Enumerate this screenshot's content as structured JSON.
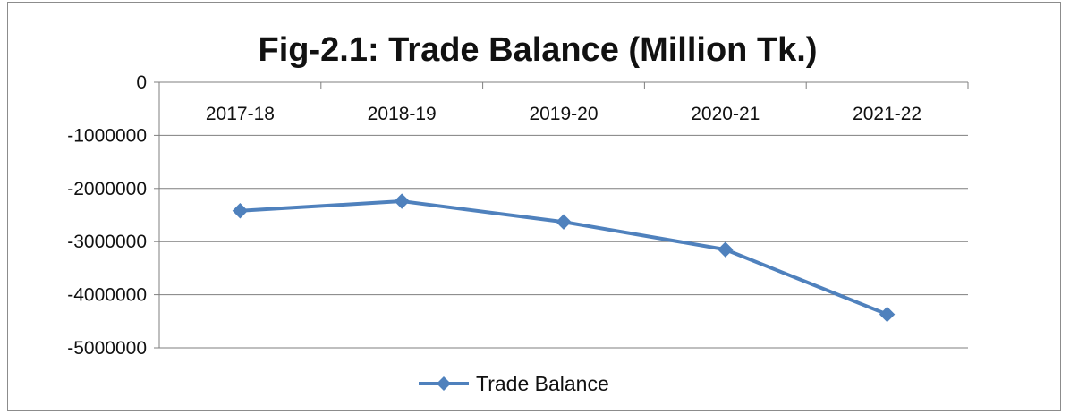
{
  "chart_data": {
    "type": "line",
    "title": "Fig-2.1: Trade Balance (Million Tk.)",
    "xlabel": "",
    "ylabel": "",
    "categories": [
      "2017-18",
      "2018-19",
      "2019-20",
      "2020-21",
      "2021-22"
    ],
    "series": [
      {
        "name": "Trade Balance",
        "color": "#4f81bd",
        "marker": "diamond",
        "values": [
          -2420000,
          -2240000,
          -2630000,
          -3150000,
          -4370000
        ]
      }
    ],
    "ylim": [
      -5000000,
      0
    ],
    "yticks": [
      "0",
      "-1000000",
      "-2000000",
      "-3000000",
      "-4000000",
      "-5000000"
    ],
    "ytick_values": [
      0,
      -1000000,
      -2000000,
      -3000000,
      -4000000,
      -5000000
    ],
    "grid": true,
    "x_labels_position": "top-below-zero-axis",
    "legend_position": "bottom"
  }
}
